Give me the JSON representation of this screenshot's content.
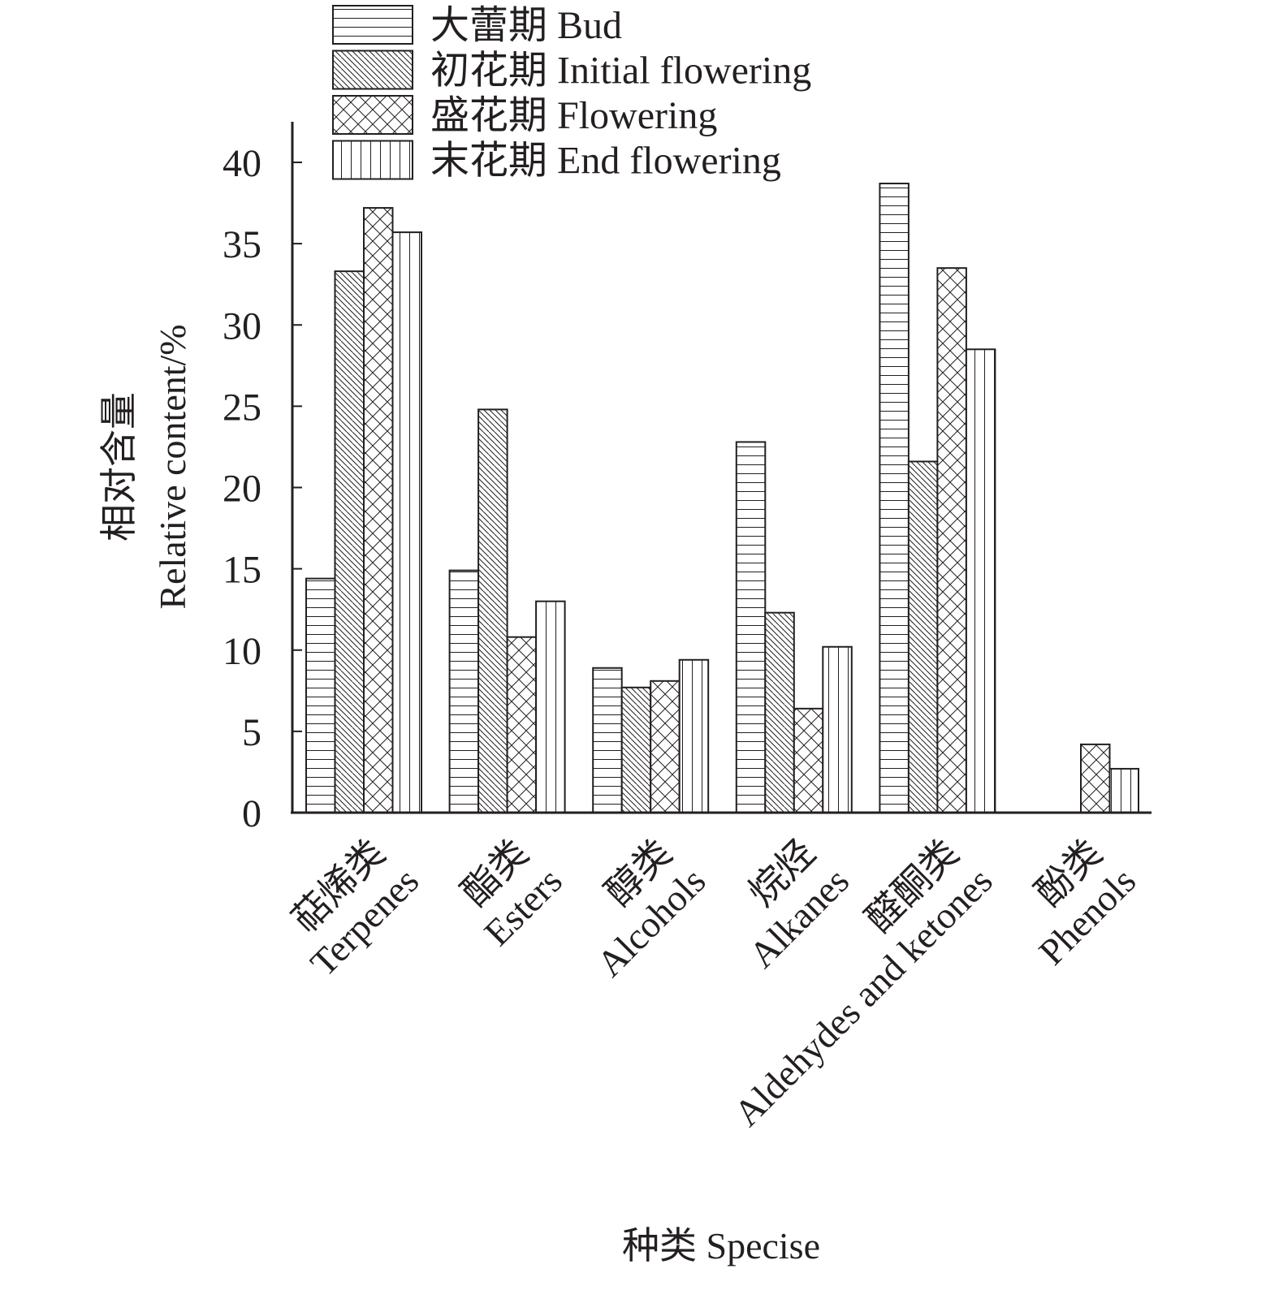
{
  "chart_data": {
    "type": "bar",
    "title": "",
    "xlabel": "种类 Specise",
    "ylabel_cn": "相对含量",
    "ylabel": "Relative content/%",
    "ylim": [
      0,
      42
    ],
    "yticks": [
      0,
      5,
      10,
      15,
      20,
      25,
      30,
      35,
      40
    ],
    "grid": false,
    "legend_position": "top",
    "categories": [
      {
        "cn": "萜烯类",
        "en": "Terpenes"
      },
      {
        "cn": "酯类",
        "en": "Esters"
      },
      {
        "cn": "醇类",
        "en": "Alcohols"
      },
      {
        "cn": "烷烃",
        "en": "Alkanes"
      },
      {
        "cn": "醛酮类",
        "en": "Aldehydes and ketones"
      },
      {
        "cn": "酚类",
        "en": "Phenols"
      }
    ],
    "series": [
      {
        "name": "大蕾期 Bud",
        "pattern": "horizontal",
        "values": [
          14.4,
          14.9,
          8.9,
          22.8,
          38.7,
          0
        ]
      },
      {
        "name": "初花期 Initial flowering",
        "pattern": "diagonal",
        "values": [
          33.3,
          24.8,
          7.7,
          12.3,
          21.6,
          0
        ]
      },
      {
        "name": "盛花期 Flowering",
        "pattern": "crosshatch",
        "values": [
          37.2,
          10.8,
          8.1,
          6.4,
          33.5,
          4.2
        ]
      },
      {
        "name": "末花期 End flowering",
        "pattern": "vertical",
        "values": [
          35.7,
          13.0,
          9.4,
          10.2,
          28.5,
          2.7
        ]
      }
    ]
  }
}
